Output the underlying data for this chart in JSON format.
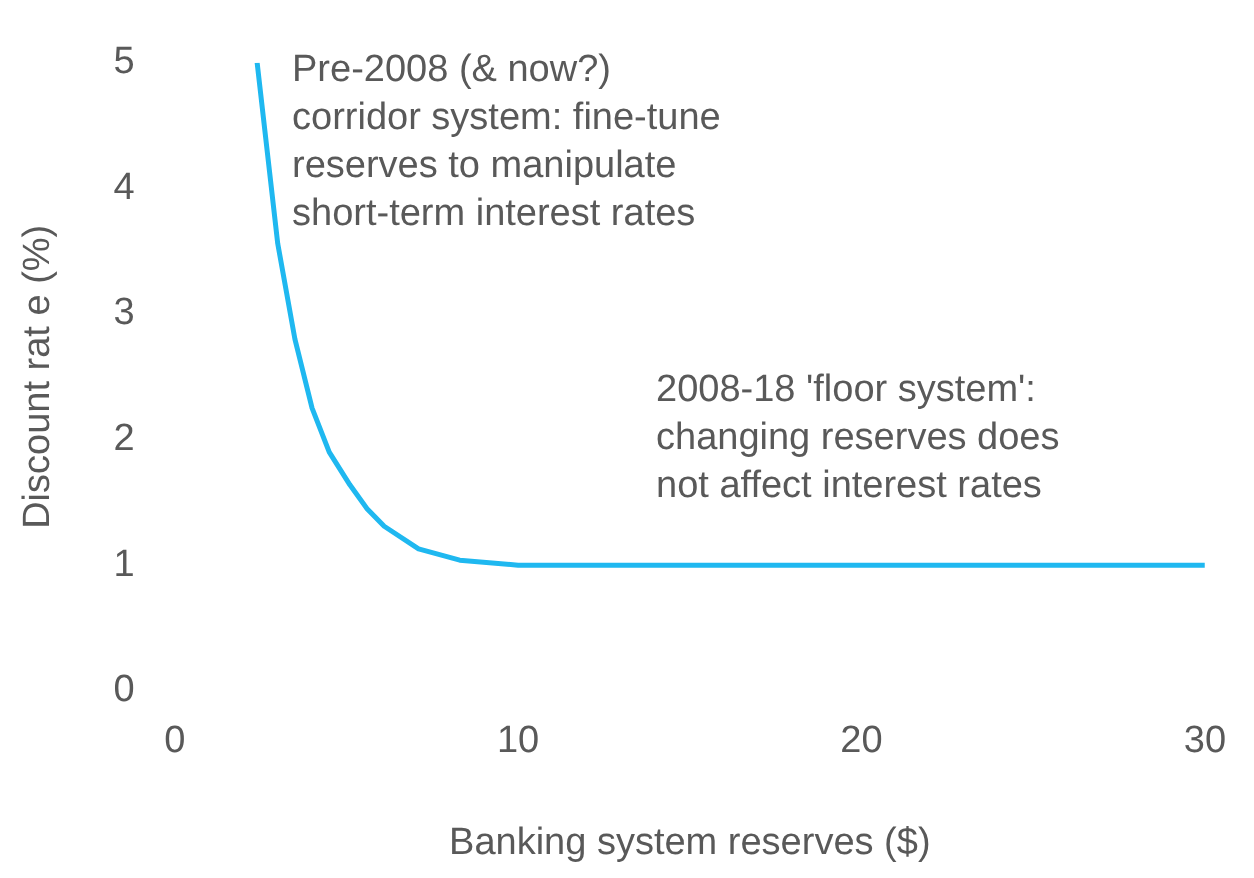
{
  "chart_data": {
    "type": "line",
    "xlabel": "Banking system reserves ($)",
    "ylabel": "Discount rat e (%)",
    "x": [
      2.4,
      3.0,
      3.5,
      4.0,
      4.5,
      5.1,
      5.6,
      6.1,
      7.1,
      8.3,
      10,
      11.3,
      15,
      20,
      25,
      30
    ],
    "series": [
      {
        "color": "#1fb8f0",
        "values": [
          5,
          3.56,
          2.8,
          2.25,
          1.9,
          1.64,
          1.45,
          1.31,
          1.13,
          1.04,
          1.0,
          1.0,
          1.0,
          1.0,
          1.0,
          1.0
        ]
      }
    ],
    "xlim": [
      0,
      30
    ],
    "xticks": [
      0,
      10,
      20,
      30
    ],
    "ylim": [
      0,
      5
    ],
    "yticks": [
      0,
      1,
      2,
      3,
      4,
      5
    ],
    "grid": false,
    "legend": false,
    "marker": "none",
    "line_style": "solid",
    "annotations": [
      "Pre-2008 (& now?)\ncorridor system: fine-tune\nreserves to manipulate\nshort-term interest rates",
      "2008-18 'floor system':\nchanging reserves does\nnot affect interest rates"
    ]
  }
}
